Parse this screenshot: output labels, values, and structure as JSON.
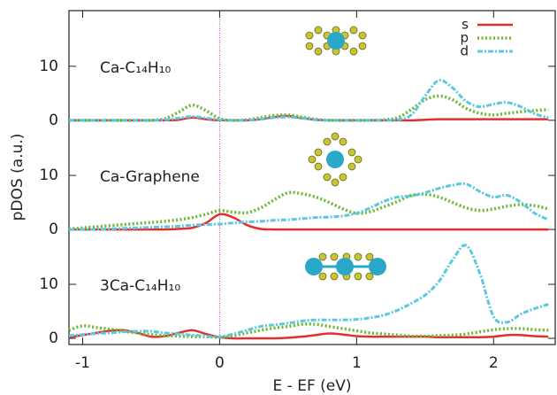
{
  "chart_data": [
    {
      "type": "line",
      "annotation": "Ca-C₁₄H₁₀",
      "ylabel": "pDOS (a.u.)",
      "x": [
        -1.1,
        -1.0,
        -0.9,
        -0.8,
        -0.7,
        -0.6,
        -0.5,
        -0.4,
        -0.3,
        -0.2,
        -0.1,
        0,
        0.1,
        0.2,
        0.3,
        0.4,
        0.5,
        0.6,
        0.7,
        0.8,
        0.9,
        1.0,
        1.1,
        1.2,
        1.3,
        1.4,
        1.5,
        1.6,
        1.7,
        1.8,
        1.9,
        2.0,
        2.1,
        2.2,
        2.3,
        2.4
      ],
      "xlim": [
        -1.1,
        2.45
      ],
      "ylim": [
        -41.5,
        20.3
      ],
      "yticks": [
        0,
        10
      ],
      "legend": "upper right",
      "series": [
        {
          "name": "s",
          "color": "#e03030",
          "style": "solid",
          "values": [
            0,
            0,
            0,
            0,
            0,
            0,
            0,
            0,
            0.1,
            0.5,
            0.2,
            0,
            0,
            0,
            0.2,
            0.6,
            0.8,
            0.4,
            0.1,
            0,
            0,
            0,
            0,
            0,
            0,
            0,
            0.1,
            0.2,
            0.2,
            0.2,
            0.2,
            0.2,
            0.2,
            0.2,
            0.2,
            0.2
          ]
        },
        {
          "name": "p",
          "color": "#6ab832",
          "style": "dotted",
          "values": [
            0,
            0,
            0,
            0,
            0,
            0,
            0,
            0.3,
            1.5,
            2.8,
            1.8,
            0.3,
            0,
            0.1,
            0.5,
            0.9,
            1.0,
            0.6,
            0.2,
            0,
            0,
            0,
            0,
            0.1,
            0.5,
            2.0,
            3.8,
            4.5,
            3.8,
            2.2,
            1.3,
            1.0,
            1.3,
            1.6,
            1.8,
            2.0
          ]
        },
        {
          "name": "d",
          "color": "#5bc8e0",
          "style": "dashdot",
          "values": [
            0,
            0,
            0,
            0,
            0,
            0,
            0,
            0.1,
            0.4,
            0.7,
            0.4,
            0.1,
            0,
            0,
            0.2,
            0.5,
            0.6,
            0.4,
            0.1,
            0,
            0,
            0,
            0,
            0,
            0.1,
            1.0,
            4.5,
            7.4,
            6.0,
            3.5,
            2.5,
            3.0,
            3.3,
            2.5,
            1.2,
            0.5
          ]
        }
      ]
    },
    {
      "type": "line",
      "annotation": "Ca-Graphene",
      "x": [
        -1.1,
        -1.0,
        -0.9,
        -0.8,
        -0.7,
        -0.6,
        -0.5,
        -0.4,
        -0.3,
        -0.2,
        -0.1,
        0,
        0.1,
        0.2,
        0.3,
        0.4,
        0.5,
        0.6,
        0.7,
        0.8,
        0.9,
        1.0,
        1.1,
        1.2,
        1.3,
        1.4,
        1.5,
        1.6,
        1.7,
        1.8,
        1.9,
        2.0,
        2.1,
        2.2,
        2.3,
        2.4
      ],
      "xlim": [
        -1.1,
        2.45
      ],
      "ylim": [
        -21.3,
        40.5
      ],
      "yticks": [
        0,
        10
      ],
      "series": [
        {
          "color": "#e03030",
          "style": "solid",
          "values": [
            0,
            0,
            0,
            0,
            0,
            0,
            0,
            0,
            0.1,
            0.3,
            1.2,
            2.8,
            2.2,
            0.8,
            0.1,
            0,
            0,
            0,
            0,
            0,
            0,
            0,
            0,
            0,
            0,
            0,
            0,
            0,
            0,
            0,
            0,
            0,
            0,
            0,
            0,
            0
          ]
        },
        {
          "color": "#6ab832",
          "style": "dotted",
          "values": [
            0.1,
            0.3,
            0.5,
            0.7,
            0.9,
            1.1,
            1.3,
            1.5,
            1.8,
            2.2,
            2.8,
            3.5,
            3.2,
            3.1,
            4.0,
            5.5,
            6.8,
            6.6,
            6.0,
            5.0,
            3.8,
            3.0,
            3.3,
            4.2,
            5.2,
            6.3,
            6.5,
            6.0,
            5.0,
            4.0,
            3.5,
            3.8,
            4.3,
            4.6,
            4.4,
            3.8
          ]
        },
        {
          "color": "#5bc8e0",
          "style": "dashdot",
          "values": [
            0,
            0,
            0,
            0.1,
            0.2,
            0.3,
            0.4,
            0.5,
            0.6,
            0.8,
            0.9,
            1.0,
            1.2,
            1.4,
            1.5,
            1.7,
            1.8,
            2.0,
            2.2,
            2.3,
            2.5,
            3.0,
            4.0,
            5.2,
            6.0,
            6.2,
            6.8,
            7.6,
            8.2,
            8.4,
            7.0,
            6.0,
            6.3,
            5.0,
            3.0,
            1.8
          ]
        }
      ]
    },
    {
      "type": "line",
      "annotation": "3Ca-C₁₄H₁₀",
      "xlabel": "E - EF (eV)",
      "x": [
        -1.1,
        -1.0,
        -0.9,
        -0.8,
        -0.7,
        -0.6,
        -0.5,
        -0.4,
        -0.3,
        -0.2,
        -0.1,
        0,
        0.1,
        0.2,
        0.3,
        0.4,
        0.5,
        0.6,
        0.7,
        0.8,
        0.9,
        1.0,
        1.1,
        1.2,
        1.3,
        1.4,
        1.5,
        1.6,
        1.7,
        1.8,
        1.9,
        2.0,
        2.1,
        2.2,
        2.3,
        2.4
      ],
      "xlim": [
        -1.1,
        2.45
      ],
      "xticks": [
        -1,
        0,
        1,
        2
      ],
      "ylim": [
        -1.15,
        60.7
      ],
      "yticks": [
        0,
        10
      ],
      "series": [
        {
          "color": "#e03030",
          "style": "solid",
          "values": [
            0.2,
            0.6,
            1.0,
            1.4,
            1.5,
            1.0,
            0.3,
            0.4,
            1.0,
            1.5,
            0.8,
            0.2,
            0,
            0,
            0,
            0,
            0.1,
            0.3,
            0.6,
            0.9,
            0.7,
            0.4,
            0.3,
            0.3,
            0.3,
            0.3,
            0.3,
            0.2,
            0.2,
            0.2,
            0.2,
            0.3,
            0.6,
            0.6,
            0.4,
            0.3
          ]
        },
        {
          "color": "#6ab832",
          "style": "dotted",
          "values": [
            1.5,
            2.3,
            2.0,
            1.7,
            1.3,
            1.0,
            0.7,
            0.5,
            0.4,
            0.3,
            0.3,
            0.2,
            0.5,
            1.0,
            1.5,
            1.9,
            2.2,
            2.6,
            2.6,
            2.2,
            1.8,
            1.4,
            1.0,
            0.8,
            0.6,
            0.4,
            0.4,
            0.5,
            0.6,
            0.8,
            1.2,
            1.6,
            1.8,
            1.8,
            1.6,
            1.5
          ]
        },
        {
          "color": "#5bc8e0",
          "style": "dashdot",
          "values": [
            0.5,
            0.7,
            0.9,
            1.0,
            1.2,
            1.3,
            1.3,
            1.0,
            0.8,
            0.6,
            0.4,
            0.3,
            0.8,
            1.5,
            2.2,
            2.5,
            2.8,
            3.2,
            3.4,
            3.4,
            3.4,
            3.5,
            3.8,
            4.3,
            5.2,
            6.5,
            8.0,
            10.5,
            14.5,
            17.2,
            12.0,
            4.0,
            3.0,
            4.5,
            5.5,
            6.3
          ]
        }
      ]
    }
  ]
}
